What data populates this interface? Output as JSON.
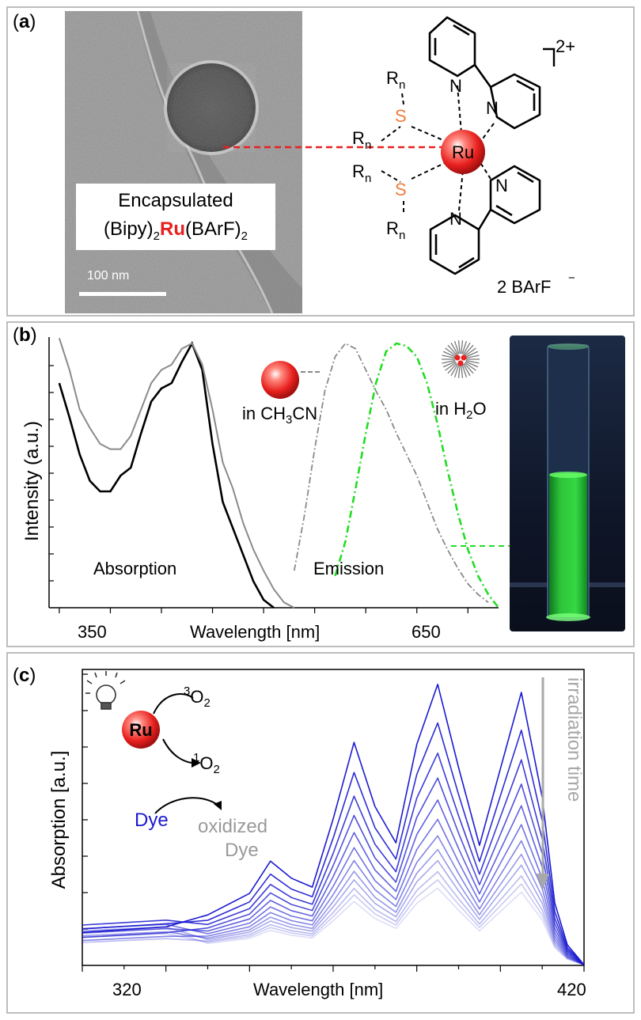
{
  "panel_a": {
    "label_open": "(",
    "label_letter": "a",
    "label_close": ")",
    "scalebar": "100 nm",
    "caption_line1": "Encapsulated",
    "caption_line2_pre": "(Bipy)",
    "caption_line2_sub1": "2",
    "caption_line2_metal": "Ru",
    "caption_line2_post": "(BArF)",
    "caption_line2_sub2": "2",
    "charge": "2+",
    "metal": "Ru",
    "ligand_atoms": {
      "N": "N",
      "S": "S",
      "R": "R",
      "n": "n"
    },
    "counterion": "2 BArF",
    "counterion_charge": "−"
  },
  "panel_b": {
    "label_open": "(",
    "label_letter": "b",
    "label_close": ")",
    "ylabel": "Intensity (a.u.)",
    "xlabel": "Wavelength [nm]",
    "tick_350": "350",
    "tick_650": "650",
    "absorption_label": "Absorption",
    "emission_label": "Emission",
    "legend_ch3cn_pre": "in CH",
    "legend_ch3cn_sub": "3",
    "legend_ch3cn_post": "CN",
    "legend_h2o_pre": "in H",
    "legend_h2o_sub": "2",
    "legend_h2o_post": "O"
  },
  "panel_c": {
    "label_open": "(",
    "label_letter": "c",
    "label_close": ")",
    "ylabel": "Absorption [a.u.]",
    "xlabel": "Wavelength [nm]",
    "tick_320": "320",
    "tick_420": "420",
    "ru": "Ru",
    "o2_triplet_sup": "3",
    "o2_triplet": "O",
    "o2_triplet_sub": "2",
    "o2_singlet_sup": "1",
    "o2_singlet": "O",
    "o2_singlet_sub": "2",
    "dye": "Dye",
    "oxidized_line1": "oxidized",
    "oxidized_line2": "Dye",
    "irradiation": "irradiation time"
  },
  "colors": {
    "frame": "#bdbdbd",
    "ru_red": "#e8201e",
    "sulfur": "#f07c3c",
    "emission_green": "#22dd22",
    "dye_blue": "#1a1ad0",
    "grey_text": "#9a9a9a"
  },
  "chart_data": [
    {
      "type": "line",
      "panel": "b",
      "xlabel": "Wavelength [nm]",
      "ylabel": "Intensity (a.u.)",
      "x_ticks": [
        350,
        650
      ],
      "series": [
        {
          "name": "",
          "kind": "absorption",
          "x": [
            300,
            310,
            320,
            330,
            340,
            350,
            360,
            370,
            380,
            390,
            400,
            410,
            420,
            430,
            440,
            450,
            460,
            470,
            480,
            490,
            500,
            510
          ],
          "y": [
            0.85,
            0.72,
            0.58,
            0.48,
            0.44,
            0.44,
            0.5,
            0.53,
            0.66,
            0.78,
            0.83,
            0.85,
            0.93,
            1.0,
            0.9,
            0.62,
            0.4,
            0.3,
            0.2,
            0.1,
            0.03,
            0.0
          ]
        },
        {
          "name": "",
          "kind": "absorption",
          "x": [
            300,
            310,
            320,
            330,
            340,
            350,
            360,
            370,
            380,
            390,
            400,
            410,
            420,
            430,
            440,
            450,
            460,
            470,
            480,
            490,
            500,
            510,
            520,
            530
          ],
          "y": [
            1.02,
            0.9,
            0.75,
            0.68,
            0.62,
            0.6,
            0.6,
            0.65,
            0.75,
            0.85,
            0.9,
            0.92,
            0.98,
            1.0,
            0.92,
            0.75,
            0.55,
            0.45,
            0.32,
            0.22,
            0.14,
            0.07,
            0.02,
            0.0
          ]
        },
        {
          "name": "in CH3CN",
          "kind": "emission",
          "x": [
            530,
            540,
            550,
            560,
            570,
            580,
            590,
            600,
            610,
            620,
            630,
            640,
            650,
            660,
            670,
            680,
            690,
            700,
            710,
            720
          ],
          "y": [
            0.14,
            0.35,
            0.6,
            0.82,
            0.95,
            1.0,
            0.98,
            0.9,
            0.82,
            0.75,
            0.66,
            0.58,
            0.5,
            0.4,
            0.3,
            0.22,
            0.15,
            0.09,
            0.05,
            0.02
          ]
        },
        {
          "name": "in H2O",
          "kind": "emission",
          "x": [
            570,
            580,
            590,
            600,
            610,
            620,
            630,
            640,
            650,
            660,
            670,
            680,
            690,
            700,
            710,
            720,
            730
          ],
          "y": [
            0.12,
            0.25,
            0.45,
            0.66,
            0.85,
            0.97,
            1.0,
            0.99,
            0.95,
            0.85,
            0.7,
            0.52,
            0.36,
            0.22,
            0.12,
            0.05,
            0.0
          ]
        }
      ]
    },
    {
      "type": "line",
      "panel": "c",
      "xlabel": "Wavelength [nm]",
      "ylabel": "Absorption [a.u.]",
      "x_ticks": [
        320,
        420
      ],
      "xlim": [
        300,
        420
      ],
      "series_count": 12,
      "base_shape": {
        "x": [
          300,
          320,
          330,
          340,
          345,
          350,
          355,
          360,
          365,
          370,
          375,
          380,
          385,
          390,
          395,
          400,
          405,
          410,
          413,
          416,
          420
        ],
        "y": [
          0.12,
          0.14,
          0.14,
          0.22,
          0.34,
          0.28,
          0.25,
          0.5,
          0.78,
          0.55,
          0.42,
          0.78,
          1.0,
          0.7,
          0.42,
          0.7,
          0.98,
          0.6,
          0.22,
          0.07,
          0.0
        ]
      },
      "scale_factors": [
        1.0,
        0.86,
        0.75,
        0.66,
        0.58,
        0.51,
        0.45,
        0.4,
        0.36,
        0.32,
        0.29,
        0.26
      ]
    }
  ]
}
